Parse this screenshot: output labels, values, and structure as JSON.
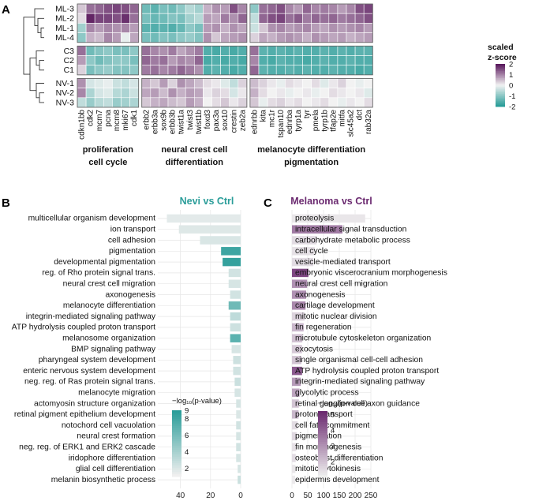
{
  "panel_letters": {
    "a": "A",
    "b": "B",
    "c": "C"
  },
  "colors": {
    "teal": "#2a9d99",
    "white": "#f2f2f2",
    "purple": "#5b1a5e",
    "bar_b": "#2a9d99",
    "bar_c": "#6b2a70",
    "grid": "#e6e6e6"
  },
  "chart_data": [
    {
      "type": "heatmap",
      "rows": [
        "ML-3",
        "ML-2",
        "ML-1",
        "ML-4",
        "C3",
        "C2",
        "C1",
        "NV-1",
        "NV-2",
        "NV-3"
      ],
      "row_groups": [
        [
          0,
          3
        ],
        [
          4,
          6
        ],
        [
          7,
          9
        ]
      ],
      "columns": [
        "cdkn1bb",
        "cdk2",
        "mcm7",
        "pcna",
        "mcm8",
        "mki67",
        "cdk1",
        "erbb2",
        "erbb3a",
        "sox9b",
        "erbb3b",
        "twist1a",
        "twist3",
        "twist1b",
        "foxd3",
        "pax3a",
        "sox10",
        "crestin",
        "zeb2a",
        "ednrbb",
        "kita",
        "mc1r",
        "tspan10",
        "ednrba",
        "tyrp1a",
        "tyr",
        "pmela",
        "tyrp1b",
        "tfap2e",
        "mitfa",
        "slc45a2",
        "dct",
        "rab32a"
      ],
      "column_groups": [
        {
          "label1": "proliferation",
          "label2": "cell cycle",
          "start": 0,
          "end": 6
        },
        {
          "label1": "neural crest cell",
          "label2": "differentiation",
          "start": 7,
          "end": 18
        },
        {
          "label1": "melanocyte differentiation",
          "label2": "pigmentation",
          "start": 19,
          "end": 32
        }
      ],
      "values": [
        [
          0.4,
          1.2,
          1.3,
          1.5,
          1.6,
          1.5,
          1.3,
          -1.3,
          -1.5,
          -1.2,
          -1.3,
          -1.0,
          -0.6,
          -0.8,
          0.6,
          0.9,
          0.8,
          1.5,
          1.0,
          -1.0,
          1.2,
          1.3,
          1.5,
          1.0,
          0.8,
          1.3,
          1.0,
          1.1,
          1.0,
          0.8,
          1.0,
          1.5,
          1.6
        ],
        [
          0.2,
          1.9,
          1.6,
          1.6,
          1.5,
          1.8,
          1.2,
          -1.2,
          -1.4,
          -1.3,
          -1.1,
          -1.2,
          -0.8,
          -0.6,
          0.8,
          0.7,
          1.1,
          0.9,
          1.3,
          -0.5,
          1.3,
          1.5,
          1.6,
          1.2,
          1.4,
          1.1,
          1.3,
          1.2,
          1.3,
          1.1,
          1.2,
          1.3,
          1.5
        ],
        [
          -0.8,
          1.0,
          0.8,
          1.0,
          0.9,
          1.0,
          0.8,
          -1.5,
          -1.6,
          -1.5,
          -1.6,
          -1.4,
          -1.0,
          -1.2,
          0.8,
          0.9,
          0.6,
          0.9,
          0.7,
          -0.4,
          0.4,
          0.9,
          1.0,
          0.8,
          0.9,
          1.0,
          0.8,
          0.7,
          0.9,
          0.8,
          0.9,
          1.0,
          0.8
        ],
        [
          -1.0,
          0.6,
          0.5,
          1.0,
          0.8,
          -0.1,
          0.7,
          -1.2,
          -1.3,
          -1.1,
          -1.2,
          -1.0,
          -0.9,
          -1.1,
          0.9,
          0.4,
          0.7,
          0.8,
          0.9,
          0.3,
          0.7,
          0.6,
          0.8,
          0.9,
          0.8,
          0.6,
          0.9,
          0.8,
          0.7,
          0.8,
          0.6,
          0.7,
          0.8
        ],
        [
          1.2,
          -1.3,
          -1.1,
          -1.0,
          -1.2,
          -1.2,
          -1.0,
          1.2,
          1.0,
          0.9,
          1.1,
          0.7,
          0.9,
          1.1,
          -1.6,
          -1.7,
          -1.6,
          -1.7,
          -1.6,
          1.2,
          -1.5,
          -1.6,
          -1.5,
          -1.6,
          -1.5,
          -1.6,
          -1.6,
          -1.5,
          -1.6,
          -1.5,
          -1.6,
          -1.5,
          -1.5
        ],
        [
          0.8,
          -1.0,
          -1.3,
          -1.1,
          -1.0,
          -1.0,
          -1.2,
          1.3,
          1.1,
          1.2,
          0.8,
          1.0,
          0.9,
          1.3,
          -1.7,
          -1.6,
          -1.7,
          -1.6,
          -1.7,
          1.0,
          -1.6,
          -1.7,
          -1.5,
          -1.6,
          -1.6,
          -1.7,
          -1.6,
          -1.5,
          -1.6,
          -1.6,
          -1.5,
          -1.6,
          -1.6
        ],
        [
          0.3,
          -1.2,
          -1.0,
          -0.9,
          -1.1,
          -1.1,
          -1.0,
          1.1,
          1.2,
          1.0,
          1.1,
          1.3,
          1.1,
          0.9,
          -1.6,
          -1.5,
          -1.6,
          -1.7,
          -1.6,
          1.3,
          -1.5,
          -1.6,
          -1.6,
          -1.5,
          -1.6,
          -1.5,
          -1.6,
          -1.6,
          -1.5,
          -1.6,
          -1.6,
          -1.7,
          -1.6
        ],
        [
          0.9,
          -0.3,
          -0.2,
          -0.1,
          -0.4,
          -0.5,
          -0.3,
          0.6,
          0.4,
          0.8,
          0.3,
          0.9,
          0.7,
          0.5,
          0.2,
          0.1,
          -0.2,
          -0.5,
          0.3,
          0.5,
          0.3,
          0.1,
          -0.1,
          0.2,
          0.1,
          0.0,
          0.2,
          -0.2,
          0.1,
          0.3,
          0.0,
          -0.1,
          0.0
        ],
        [
          1.0,
          -0.7,
          -0.3,
          -0.2,
          -0.6,
          -0.7,
          -0.4,
          0.7,
          0.8,
          0.5,
          0.9,
          0.6,
          0.8,
          0.7,
          0.1,
          0.3,
          0.2,
          -0.3,
          0.1,
          0.6,
          0.2,
          0.0,
          0.1,
          -0.1,
          0.0,
          0.1,
          -0.1,
          0.0,
          0.2,
          0.1,
          0.0,
          0.1,
          -0.2
        ],
        [
          -0.5,
          -0.9,
          -0.6,
          -0.5,
          -0.9,
          -0.8,
          -0.7,
          0.4,
          0.6,
          0.7,
          0.5,
          0.4,
          0.8,
          0.6,
          0.0,
          0.2,
          0.4,
          0.1,
          0.3,
          0.4,
          -0.1,
          0.2,
          0.3,
          0.1,
          0.2,
          0.0,
          0.1,
          0.2,
          0.0,
          -0.1,
          0.1,
          0.0,
          0.2
        ]
      ],
      "legend": {
        "title1": "scaled",
        "title2": "z-score",
        "ticks": [
          2,
          1,
          0,
          -1,
          -2
        ],
        "tick_labels": [
          "2",
          "1",
          "0",
          "-1",
          "-2"
        ],
        "range": [
          -2,
          2
        ]
      }
    },
    {
      "type": "bar",
      "orientation": "horizontal",
      "title": "Nevi vs Ctrl",
      "x_reversed": true,
      "xlim": [
        0,
        55
      ],
      "x_ticks": [
        40,
        20,
        0
      ],
      "x_tick_labels": [
        "40",
        "20",
        "0"
      ],
      "categories": [
        "multicellular organism development",
        "ion transport",
        "cell adhesion",
        "pigmentation",
        "developmental pigmentation",
        "reg. of Rho protein signal trans.",
        "neural crest cell migration",
        "axonogenesis",
        "melanocyte differentiation",
        "integrin-mediated signaling pathway",
        "ATP hydrolysis coupled proton transport",
        "melanosome organization",
        "BMP signaling pathway",
        "pharyngeal system development",
        "enteric nervous system development",
        "neg. reg. of Ras protein signal trans.",
        "melanocyte migration",
        "actomyosin structure organization",
        "retinal pigment epithelium development",
        "notochord cell vacuolation",
        "neural crest formation",
        "neg. reg. of ERK1 and ERK2 cascade",
        "iridophore differentiation",
        "glial cell differentiation",
        "melanin biosynthetic process"
      ],
      "values": [
        49,
        41,
        27,
        13,
        12,
        8,
        8,
        7,
        8,
        7,
        7,
        7,
        6,
        5,
        5,
        4,
        4,
        3,
        3,
        3,
        3,
        3,
        3,
        2,
        2
      ],
      "significance": [
        1.5,
        1.7,
        1.9,
        8.2,
        8.6,
        2.2,
        2.0,
        2.2,
        6.2,
        3.0,
        2.4,
        7.0,
        2.0,
        2.4,
        2.2,
        2.5,
        2.0,
        2.0,
        1.8,
        2.2,
        2.0,
        2.2,
        2.0,
        2.0,
        2.5
      ],
      "legend": {
        "title": "−log₁₀(p-value)",
        "ticks": [
          9,
          8,
          6,
          4,
          2
        ],
        "tick_labels": [
          "9",
          "8",
          "6",
          "4",
          "2"
        ],
        "range": [
          1,
          9
        ]
      }
    },
    {
      "type": "bar",
      "orientation": "horizontal",
      "title": "Melanoma vs Ctrl",
      "xlim": [
        0,
        250
      ],
      "x_ticks": [
        0,
        50,
        100,
        150,
        200,
        250
      ],
      "x_tick_labels": [
        "0",
        "50",
        "100",
        "150",
        "200",
        "250"
      ],
      "categories": [
        "proteolysis",
        "intracellular signal transduction",
        "carbohydrate metabolic process",
        "cell cycle",
        "vesicle-mediated transport",
        "embryonic viscerocranium morphogenesis",
        "neural crest cell migration",
        "axonogenesis",
        "cartilage development",
        "mitotic nuclear division",
        "fin regeneration",
        "microtubule cytoskeleton organization",
        "exocytosis",
        "single organismal cell-cell adhesion",
        "ATP hydrolysis coupled proton transport",
        "integrin-mediated signaling pathway",
        "glycolytic process",
        "retinal ganglion cell axon guidance",
        "proton transport",
        "cell fate commitment",
        "pigmentation",
        "fin morphogenesis",
        "osteoblast differentiation",
        "mitotic cytokinesis",
        "epidermis development"
      ],
      "values": [
        232,
        160,
        78,
        72,
        68,
        52,
        48,
        45,
        43,
        40,
        37,
        33,
        32,
        30,
        32,
        28,
        24,
        22,
        21,
        18,
        15,
        14,
        12,
        11,
        10
      ],
      "significance": [
        1.2,
        3.5,
        1.4,
        1.3,
        1.4,
        4.6,
        3.0,
        3.0,
        3.2,
        1.6,
        2.2,
        2.0,
        1.8,
        1.9,
        4.2,
        2.8,
        2.6,
        1.9,
        2.2,
        1.4,
        1.5,
        1.3,
        1.4,
        1.2,
        1.1
      ],
      "legend": {
        "title": "−log₁₀(p-value)",
        "ticks": [
          5,
          4,
          3,
          2
        ],
        "tick_labels": [
          "5",
          "4",
          "3",
          "2"
        ],
        "range": [
          1,
          5.2
        ]
      }
    }
  ]
}
